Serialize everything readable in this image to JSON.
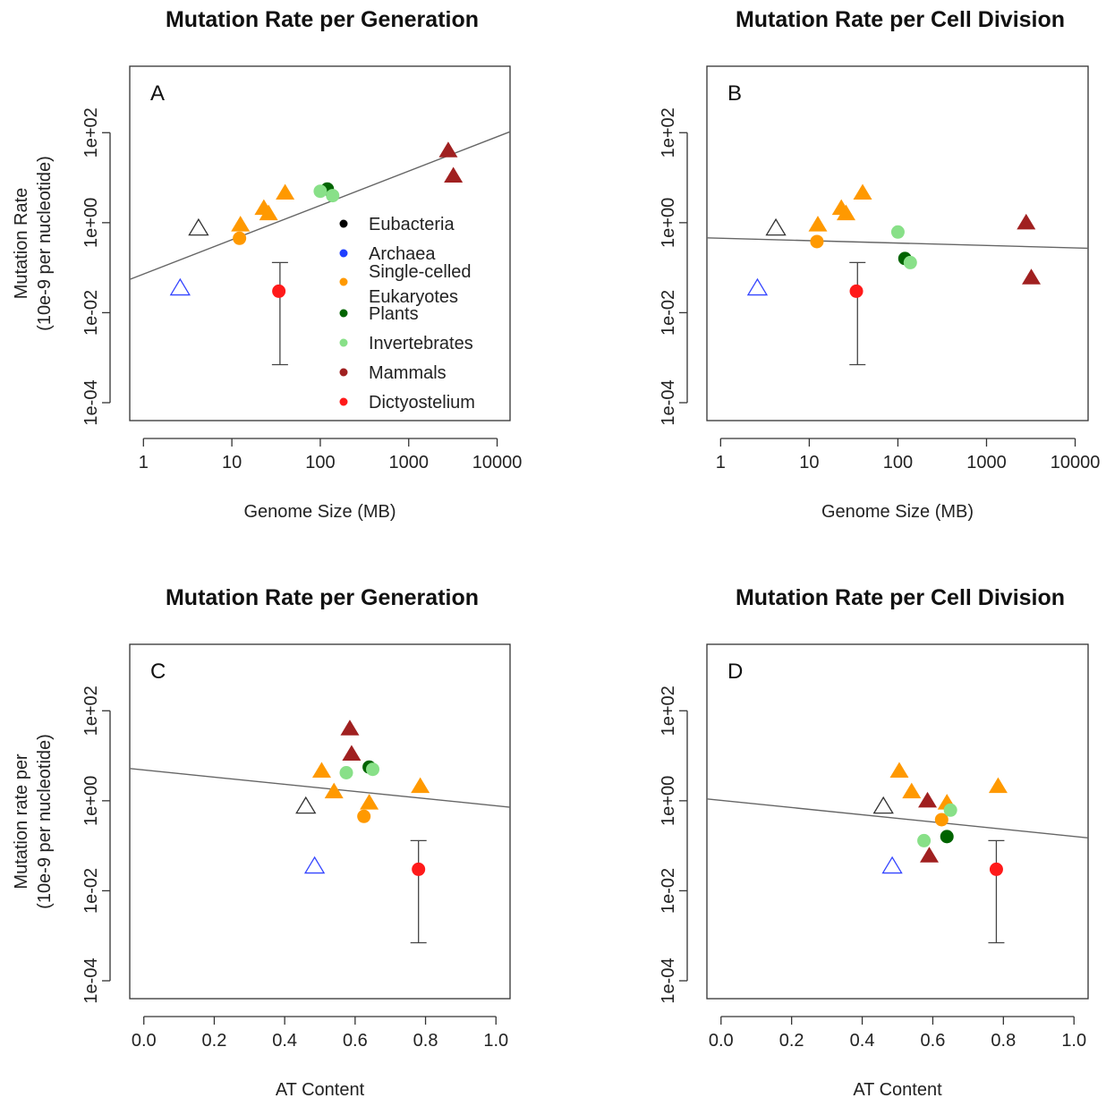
{
  "legend": {
    "items": [
      {
        "label": "Eubacteria",
        "color": "#000000"
      },
      {
        "label": "Archaea",
        "color": "#1f3fff"
      },
      {
        "label": "Single-celled",
        "color": "#ff9900"
      },
      {
        "label": "Eukaryotes",
        "color": ""
      },
      {
        "label": "Plants",
        "color": "#006400"
      },
      {
        "label": "Invertebrates",
        "color": "#88e088"
      },
      {
        "label": "Mammals",
        "color": "#a02020"
      },
      {
        "label": "Dictyostelium",
        "color": "#ff1a1a"
      }
    ]
  },
  "chart_data": [
    {
      "type": "scatter",
      "panel_label": "A",
      "title": "Mutation Rate per Generation",
      "xlabel": "Genome Size (MB)",
      "ylabel": [
        "Mutation Rate",
        "(10e-9 per nucleotide)"
      ],
      "x_scale": "log10",
      "y_scale": "log10",
      "xlim": [
        0.7,
        14000
      ],
      "ylim": [
        4e-05,
        3000
      ],
      "xticks": [
        1,
        10,
        100,
        1000,
        10000
      ],
      "xtick_labels": [
        "1",
        "10",
        "100",
        "1000",
        "10000"
      ],
      "yticks": [
        0.0001,
        0.01,
        1,
        100
      ],
      "ytick_labels": [
        "1e-04",
        "1e-02",
        "1e+00",
        "1e+02"
      ],
      "regression": {
        "x1": 0.7,
        "y1": 0.055,
        "x2": 14000,
        "y2": 105
      },
      "errorbar": {
        "x": 35,
        "low": 0.0007,
        "high": 0.13
      },
      "points": [
        {
          "x": 4.2,
          "y": 0.75,
          "shape": "triangle-open",
          "color": "#333333"
        },
        {
          "x": 2.6,
          "y": 0.035,
          "shape": "triangle-open",
          "color": "#3344ff"
        },
        {
          "x": 12.5,
          "y": 0.9,
          "shape": "triangle",
          "color": "#ff9900"
        },
        {
          "x": 12.2,
          "y": 0.45,
          "shape": "circle",
          "color": "#ff9900"
        },
        {
          "x": 23,
          "y": 2.1,
          "shape": "triangle",
          "color": "#ff9900"
        },
        {
          "x": 26,
          "y": 1.6,
          "shape": "triangle",
          "color": "#ff9900"
        },
        {
          "x": 40,
          "y": 4.6,
          "shape": "triangle",
          "color": "#ff9900"
        },
        {
          "x": 120,
          "y": 5.6,
          "shape": "circle",
          "color": "#006400"
        },
        {
          "x": 100,
          "y": 5.0,
          "shape": "circle",
          "color": "#88e088"
        },
        {
          "x": 138,
          "y": 4.0,
          "shape": "circle",
          "color": "#88e088"
        },
        {
          "x": 2800,
          "y": 40,
          "shape": "triangle",
          "color": "#a02020"
        },
        {
          "x": 3200,
          "y": 11,
          "shape": "triangle",
          "color": "#a02020"
        },
        {
          "x": 34,
          "y": 0.03,
          "shape": "circle",
          "color": "#ff1a1a"
        }
      ]
    },
    {
      "type": "scatter",
      "panel_label": "B",
      "title": "Mutation Rate per Cell Division",
      "xlabel": "Genome Size (MB)",
      "ylabel": [],
      "x_scale": "log10",
      "y_scale": "log10",
      "xlim": [
        0.7,
        14000
      ],
      "ylim": [
        4e-05,
        3000
      ],
      "xticks": [
        1,
        10,
        100,
        1000,
        10000
      ],
      "xtick_labels": [
        "1",
        "10",
        "100",
        "1000",
        "10000"
      ],
      "yticks": [
        0.0001,
        0.01,
        1,
        100
      ],
      "ytick_labels": [
        "1e-04",
        "1e-02",
        "1e+00",
        "1e+02"
      ],
      "regression": {
        "x1": 0.7,
        "y1": 0.46,
        "x2": 14000,
        "y2": 0.27
      },
      "errorbar": {
        "x": 35,
        "low": 0.0007,
        "high": 0.13
      },
      "points": [
        {
          "x": 4.2,
          "y": 0.75,
          "shape": "triangle-open",
          "color": "#333333"
        },
        {
          "x": 2.6,
          "y": 0.035,
          "shape": "triangle-open",
          "color": "#3344ff"
        },
        {
          "x": 12.5,
          "y": 0.9,
          "shape": "triangle",
          "color": "#ff9900"
        },
        {
          "x": 12.2,
          "y": 0.38,
          "shape": "circle",
          "color": "#ff9900"
        },
        {
          "x": 23,
          "y": 2.1,
          "shape": "triangle",
          "color": "#ff9900"
        },
        {
          "x": 26,
          "y": 1.6,
          "shape": "triangle",
          "color": "#ff9900"
        },
        {
          "x": 40,
          "y": 4.6,
          "shape": "triangle",
          "color": "#ff9900"
        },
        {
          "x": 100,
          "y": 0.62,
          "shape": "circle",
          "color": "#88e088"
        },
        {
          "x": 120,
          "y": 0.16,
          "shape": "circle",
          "color": "#006400"
        },
        {
          "x": 138,
          "y": 0.13,
          "shape": "circle",
          "color": "#88e088"
        },
        {
          "x": 2800,
          "y": 1.0,
          "shape": "triangle",
          "color": "#a02020"
        },
        {
          "x": 3200,
          "y": 0.06,
          "shape": "triangle",
          "color": "#a02020"
        },
        {
          "x": 34,
          "y": 0.03,
          "shape": "circle",
          "color": "#ff1a1a"
        }
      ]
    },
    {
      "type": "scatter",
      "panel_label": "C",
      "title": "Mutation Rate per Generation",
      "xlabel": "AT Content",
      "ylabel": [
        "Mutation rate per",
        "(10e-9 per nucleotide)"
      ],
      "x_scale": "linear",
      "y_scale": "log10",
      "xlim": [
        -0.04,
        1.04
      ],
      "ylim": [
        4e-05,
        3000
      ],
      "xticks": [
        0,
        0.2,
        0.4,
        0.6,
        0.8,
        1.0
      ],
      "xtick_labels": [
        "0.0",
        "0.2",
        "0.4",
        "0.6",
        "0.8",
        "1.0"
      ],
      "yticks": [
        0.0001,
        0.01,
        1,
        100
      ],
      "ytick_labels": [
        "1e-04",
        "1e-02",
        "1e+00",
        "1e+02"
      ],
      "regression": {
        "x1": -0.04,
        "y1": 5.2,
        "x2": 1.04,
        "y2": 0.72
      },
      "errorbar": {
        "x": 0.78,
        "low": 0.0007,
        "high": 0.13
      },
      "points": [
        {
          "x": 0.46,
          "y": 0.75,
          "shape": "triangle-open",
          "color": "#333333"
        },
        {
          "x": 0.485,
          "y": 0.035,
          "shape": "triangle-open",
          "color": "#3344ff"
        },
        {
          "x": 0.505,
          "y": 4.6,
          "shape": "triangle",
          "color": "#ff9900"
        },
        {
          "x": 0.54,
          "y": 1.6,
          "shape": "triangle",
          "color": "#ff9900"
        },
        {
          "x": 0.625,
          "y": 0.45,
          "shape": "circle",
          "color": "#ff9900"
        },
        {
          "x": 0.64,
          "y": 0.9,
          "shape": "triangle",
          "color": "#ff9900"
        },
        {
          "x": 0.785,
          "y": 2.1,
          "shape": "triangle",
          "color": "#ff9900"
        },
        {
          "x": 0.575,
          "y": 4.2,
          "shape": "circle",
          "color": "#88e088"
        },
        {
          "x": 0.64,
          "y": 5.6,
          "shape": "circle",
          "color": "#006400"
        },
        {
          "x": 0.65,
          "y": 5.0,
          "shape": "circle",
          "color": "#88e088"
        },
        {
          "x": 0.585,
          "y": 40,
          "shape": "triangle",
          "color": "#a02020"
        },
        {
          "x": 0.59,
          "y": 11,
          "shape": "triangle",
          "color": "#a02020"
        },
        {
          "x": 0.78,
          "y": 0.03,
          "shape": "circle",
          "color": "#ff1a1a"
        }
      ]
    },
    {
      "type": "scatter",
      "panel_label": "D",
      "title": "Mutation Rate per Cell Division",
      "xlabel": "AT Content",
      "ylabel": [],
      "x_scale": "linear",
      "y_scale": "log10",
      "xlim": [
        -0.04,
        1.04
      ],
      "ylim": [
        4e-05,
        3000
      ],
      "xticks": [
        0,
        0.2,
        0.4,
        0.6,
        0.8,
        1.0
      ],
      "xtick_labels": [
        "0.0",
        "0.2",
        "0.4",
        "0.6",
        "0.8",
        "1.0"
      ],
      "yticks": [
        0.0001,
        0.01,
        1,
        100
      ],
      "ytick_labels": [
        "1e-04",
        "1e-02",
        "1e+00",
        "1e+02"
      ],
      "regression": {
        "x1": -0.04,
        "y1": 1.1,
        "x2": 1.04,
        "y2": 0.15
      },
      "errorbar": {
        "x": 0.78,
        "low": 0.0007,
        "high": 0.13
      },
      "points": [
        {
          "x": 0.46,
          "y": 0.75,
          "shape": "triangle-open",
          "color": "#333333"
        },
        {
          "x": 0.485,
          "y": 0.035,
          "shape": "triangle-open",
          "color": "#3344ff"
        },
        {
          "x": 0.505,
          "y": 4.6,
          "shape": "triangle",
          "color": "#ff9900"
        },
        {
          "x": 0.54,
          "y": 1.6,
          "shape": "triangle",
          "color": "#ff9900"
        },
        {
          "x": 0.625,
          "y": 0.38,
          "shape": "circle",
          "color": "#ff9900"
        },
        {
          "x": 0.64,
          "y": 0.9,
          "shape": "triangle",
          "color": "#ff9900"
        },
        {
          "x": 0.785,
          "y": 2.1,
          "shape": "triangle",
          "color": "#ff9900"
        },
        {
          "x": 0.585,
          "y": 1.0,
          "shape": "triangle",
          "color": "#a02020"
        },
        {
          "x": 0.59,
          "y": 0.06,
          "shape": "triangle",
          "color": "#a02020"
        },
        {
          "x": 0.575,
          "y": 0.13,
          "shape": "circle",
          "color": "#88e088"
        },
        {
          "x": 0.64,
          "y": 0.16,
          "shape": "circle",
          "color": "#006400"
        },
        {
          "x": 0.65,
          "y": 0.62,
          "shape": "circle",
          "color": "#88e088"
        },
        {
          "x": 0.78,
          "y": 0.03,
          "shape": "circle",
          "color": "#ff1a1a"
        }
      ]
    }
  ]
}
